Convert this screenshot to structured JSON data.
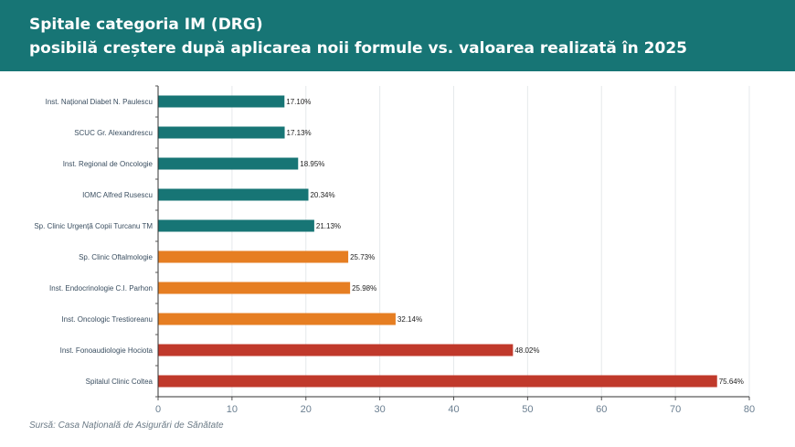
{
  "header": {
    "title_line1": "Spitale categoria IM (DRG)",
    "title_line2": "posibilă creștere după aplicarea noii formule vs. valoarea realizată în 2025"
  },
  "colors": {
    "header_bg": "#177575",
    "teal": "#177575",
    "orange": "#e67e22",
    "red": "#c0392b"
  },
  "chart_data": {
    "type": "bar",
    "orientation": "horizontal",
    "categories": [
      "Inst. Național Diabet N. Paulescu",
      "SCUC Gr. Alexandrescu",
      "Inst. Regional de Oncologie",
      "IOMC Alfred Rusescu",
      "Sp. Clinic Urgență Copii Turcanu TM",
      "Sp. Clinic Oftalmologie",
      "Inst. Endocrinologie C.I. Parhon",
      "Inst. Oncologic Trestioreanu",
      "Inst. Fonoaudiologie Hociota",
      "Spitalul Clinic Coltea"
    ],
    "values": [
      17.1,
      17.13,
      18.95,
      20.34,
      21.13,
      25.73,
      25.98,
      32.14,
      48.02,
      75.64
    ],
    "value_labels": [
      "17.10%",
      "17.13%",
      "18.95%",
      "20.34%",
      "21.13%",
      "25.73%",
      "25.98%",
      "32.14%",
      "48.02%",
      "75.64%"
    ],
    "bar_colors": [
      "#177575",
      "#177575",
      "#177575",
      "#177575",
      "#177575",
      "#e67e22",
      "#e67e22",
      "#e67e22",
      "#c0392b",
      "#c0392b"
    ],
    "xlim": [
      0,
      80
    ],
    "xticks": [
      0,
      10,
      20,
      30,
      40,
      50,
      60,
      70,
      80
    ],
    "grid": true,
    "title": "",
    "xlabel": "",
    "ylabel": ""
  },
  "source": "Sursă: Casa Națională de Asigurări de Sănătate"
}
